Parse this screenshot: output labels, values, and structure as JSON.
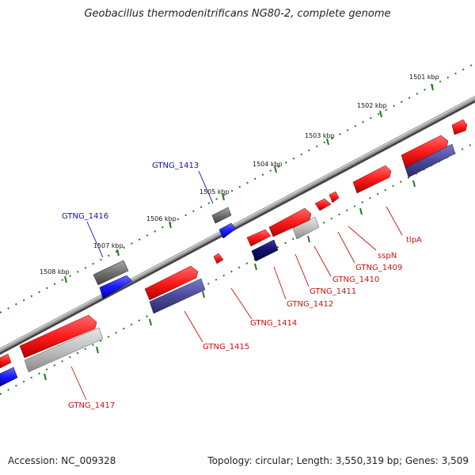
{
  "header": {
    "title": "Geobacillus thermodenitrificans NG80-2, complete genome"
  },
  "footer": {
    "accession": "Accession: NC_009328",
    "summary": "Topology: circular; Length: 3,550,319 bp; Genes: 3,509"
  },
  "ruler": {
    "ticks": [
      {
        "label": "1501 kbp"
      },
      {
        "label": "1502 kbp"
      },
      {
        "label": "1503 kbp"
      },
      {
        "label": "1504 kbp"
      },
      {
        "label": "1505 kbp"
      },
      {
        "label": "1506 kbp"
      },
      {
        "label": "1507 kbp"
      },
      {
        "label": "1508 kbp"
      }
    ]
  },
  "labels": {
    "gtng_1413": "GTNG_1413",
    "gtng_1416": "GTNG_1416",
    "tlpA": "tlpA",
    "sspN": "sspN",
    "gtng_1409": "GTNG_1409",
    "gtng_1410": "GTNG_1410",
    "gtng_1411": "GTNG_1411",
    "gtng_1412": "GTNG_1412",
    "gtng_1414": "GTNG_1414",
    "gtng_1415": "GTNG_1415",
    "gtng_1417": "GTNG_1417"
  },
  "colors": {
    "feature_red": "#ff1a1a",
    "cds_grey": "#c0c0c0",
    "cds_indigo": "#4b4a9a",
    "feature_blue": "#1a1aff",
    "feature_darkgrey": "#707070",
    "tick_green": "#1f7a1f",
    "backbone": "#888888",
    "label_red": "#d01010",
    "label_blue": "#1010c0"
  }
}
